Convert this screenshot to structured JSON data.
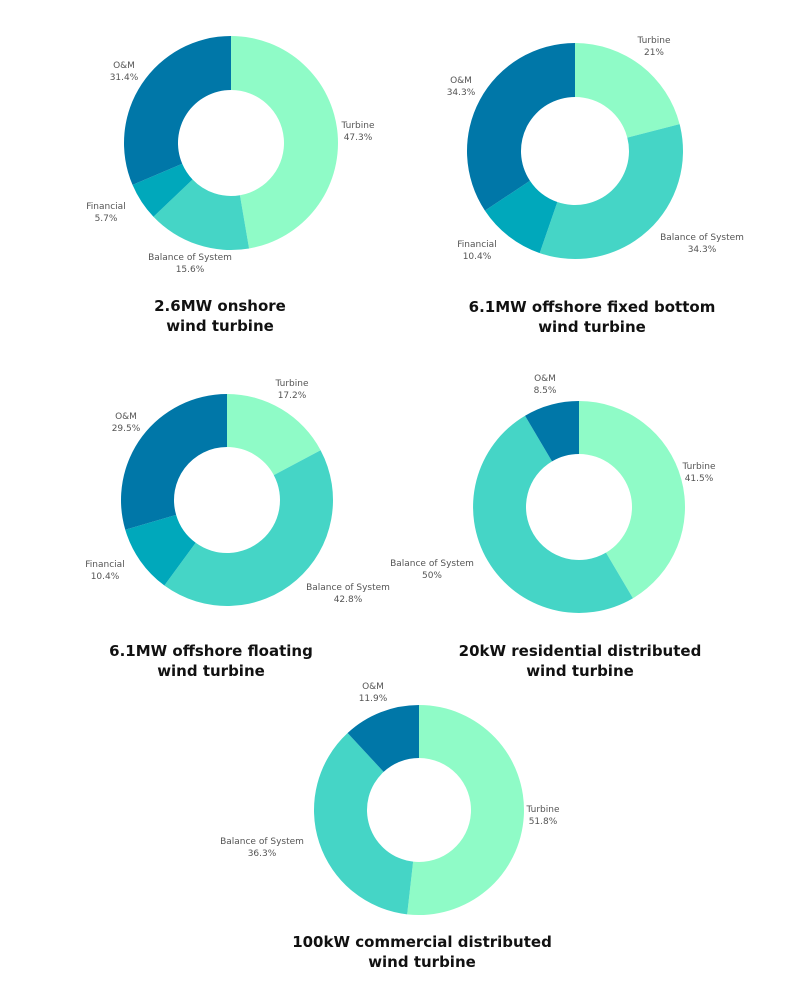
{
  "colors": {
    "Turbine": "#8ffbc7",
    "Balance of System": "#45d5c6",
    "Financial": "#00a8bb",
    "O&M": "#0077a8"
  },
  "chart_data": [
    {
      "type": "pie",
      "title": [
        "2.6MW onshore",
        "wind turbine"
      ],
      "slices": [
        {
          "label": "Turbine",
          "value": 47.3,
          "display": "47.3%"
        },
        {
          "label": "Balance of System",
          "value": 15.6,
          "display": "15.6%"
        },
        {
          "label": "Financial",
          "value": 5.7,
          "display": "5.7%"
        },
        {
          "label": "O&M",
          "value": 31.4,
          "display": "31.4%"
        }
      ]
    },
    {
      "type": "pie",
      "title": [
        "6.1MW offshore fixed bottom",
        "wind turbine"
      ],
      "slices": [
        {
          "label": "Turbine",
          "value": 21,
          "display": "21%"
        },
        {
          "label": "Balance of System",
          "value": 34.3,
          "display": "34.3%"
        },
        {
          "label": "Financial",
          "value": 10.4,
          "display": "10.4%"
        },
        {
          "label": "O&M",
          "value": 34.3,
          "display": "34.3%"
        }
      ]
    },
    {
      "type": "pie",
      "title": [
        "6.1MW offshore floating",
        "wind turbine"
      ],
      "slices": [
        {
          "label": "Turbine",
          "value": 17.2,
          "display": "17.2%"
        },
        {
          "label": "Balance of System",
          "value": 42.8,
          "display": "42.8%"
        },
        {
          "label": "Financial",
          "value": 10.4,
          "display": "10.4%"
        },
        {
          "label": "O&M",
          "value": 29.5,
          "display": "29.5%"
        }
      ]
    },
    {
      "type": "pie",
      "title": [
        "20kW residential distributed",
        "wind turbine"
      ],
      "slices": [
        {
          "label": "Turbine",
          "value": 41.5,
          "display": "41.5%"
        },
        {
          "label": "Balance of System",
          "value": 50,
          "display": "50%"
        },
        {
          "label": "O&M",
          "value": 8.5,
          "display": "8.5%"
        }
      ]
    },
    {
      "type": "pie",
      "title": [
        "100kW commercial distributed",
        "wind turbine"
      ],
      "slices": [
        {
          "label": "Turbine",
          "value": 51.8,
          "display": "51.8%"
        },
        {
          "label": "Balance of System",
          "value": 36.3,
          "display": "36.3%"
        },
        {
          "label": "O&M",
          "value": 11.9,
          "display": "11.9%"
        }
      ]
    }
  ]
}
